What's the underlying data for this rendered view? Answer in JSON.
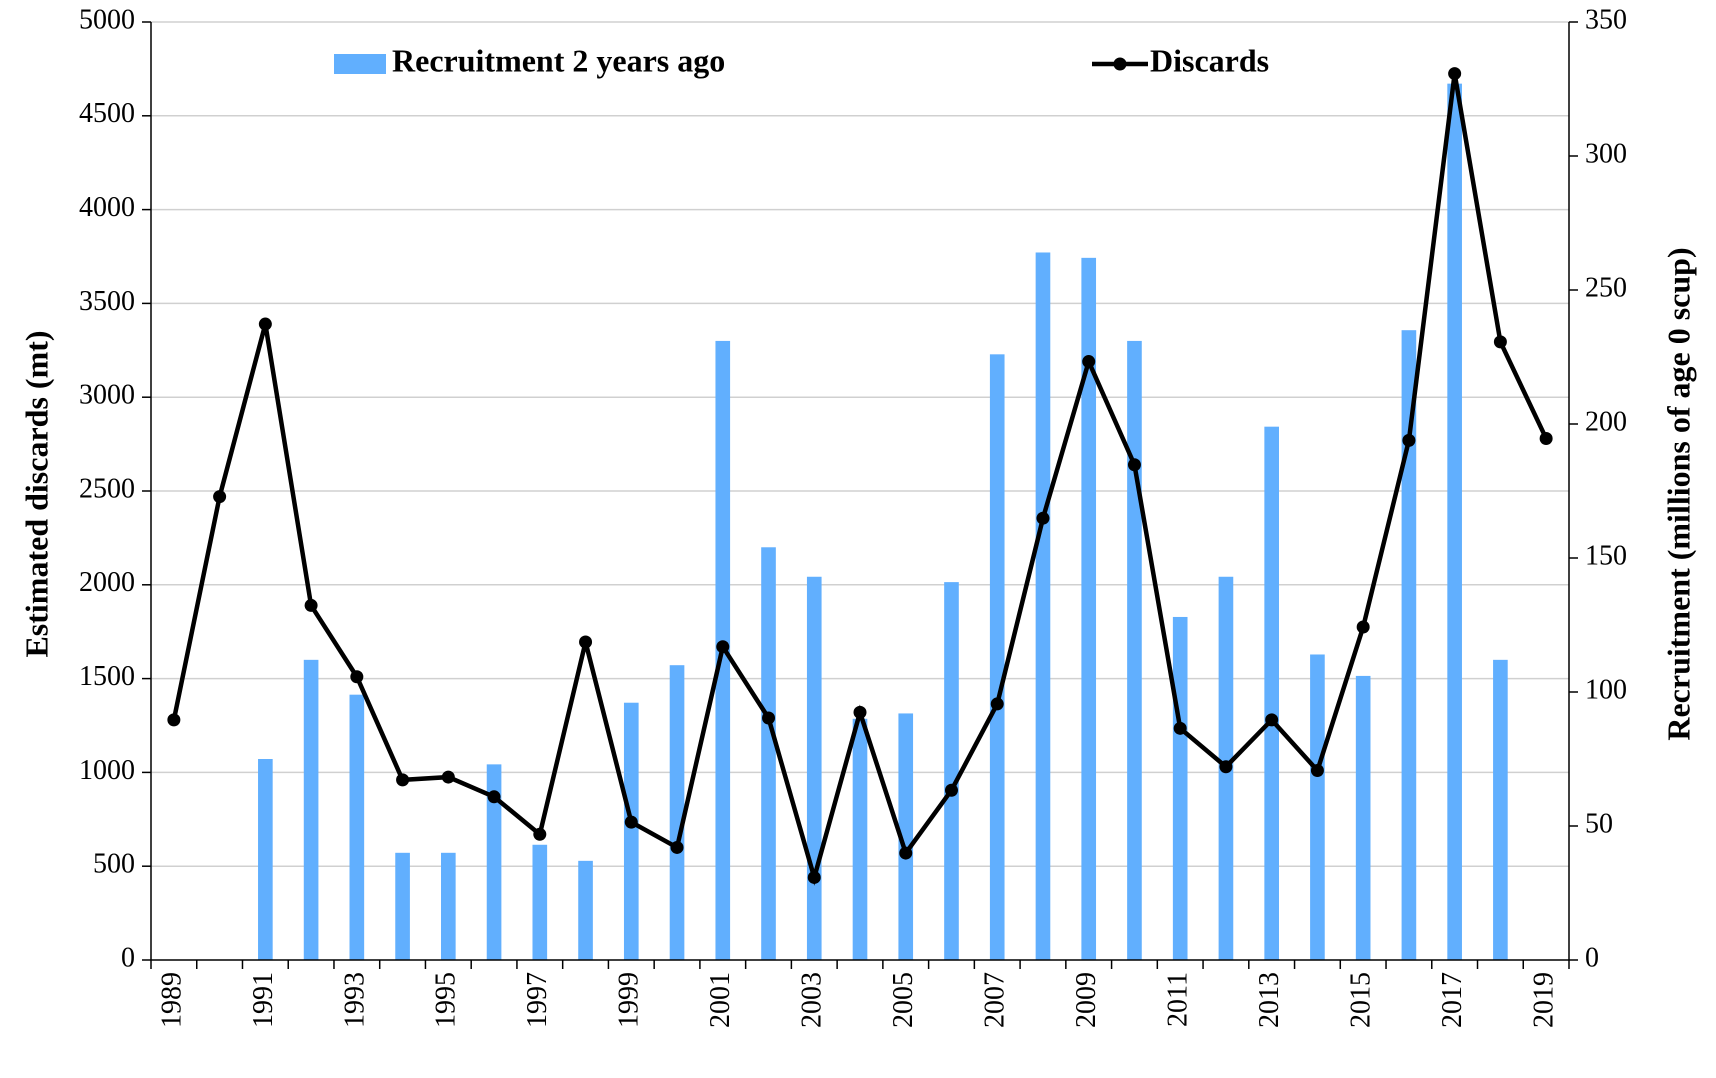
{
  "chart_data": {
    "type": "bar-line",
    "ylabel": "Estimated discards (mt)",
    "y2label": "Recruitment (millions of age 0 scup)",
    "categories": [
      "1989",
      null,
      "1991",
      null,
      "1993",
      null,
      "1995",
      null,
      "1997",
      null,
      "1999",
      null,
      "2001",
      null,
      "2003",
      null,
      "2005",
      null,
      "2007",
      null,
      "2009",
      null,
      "2011",
      null,
      "2013",
      null,
      "2015",
      null,
      "2017",
      null,
      "2019"
    ],
    "series": [
      {
        "name": "Recruitment 2 years ago",
        "type": "bar",
        "axis": "y2",
        "color": "#61affe",
        "values": [
          null,
          null,
          75,
          112,
          99,
          40,
          40,
          73,
          43,
          37,
          96,
          110,
          231,
          154,
          143,
          90,
          92,
          141,
          226,
          264,
          262,
          231,
          128,
          143,
          199,
          114,
          106,
          235,
          327,
          112,
          null
        ]
      },
      {
        "name": "Discards",
        "type": "line",
        "color": "#000000",
        "values": [
          1280,
          2470,
          3390,
          1890,
          1510,
          960,
          975,
          870,
          670,
          1695,
          735,
          600,
          1670,
          1290,
          440,
          1320,
          570,
          905,
          1365,
          2355,
          3190,
          2640,
          1235,
          1030,
          1280,
          1010,
          1775,
          2770,
          4725,
          3295,
          2780
        ]
      }
    ],
    "ylim": [
      0,
      5000
    ],
    "yticks": [
      0,
      500,
      1000,
      1500,
      2000,
      2500,
      3000,
      3500,
      4000,
      4500,
      5000
    ],
    "y2lim": [
      0,
      350
    ],
    "y2ticks": [
      0,
      50,
      100,
      150,
      200,
      250,
      300,
      350
    ],
    "grid": true,
    "legend": "top"
  }
}
